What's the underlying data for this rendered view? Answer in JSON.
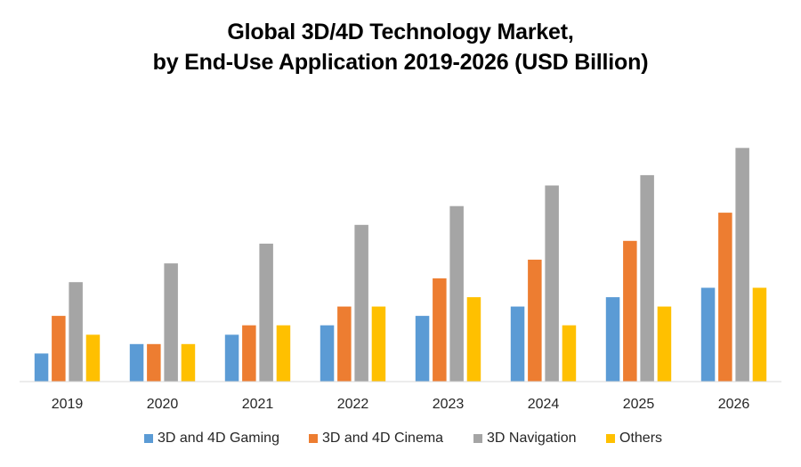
{
  "chart_data": {
    "type": "bar",
    "title": "Global 3D/4D Technology Market,",
    "subtitle": "by End-Use Application 2019-2026 (USD Billion)",
    "xlabel": "",
    "ylabel": "",
    "categories": [
      "2019",
      "2020",
      "2021",
      "2022",
      "2023",
      "2024",
      "2025",
      "2026"
    ],
    "series": [
      {
        "name": "3D and 4D Gaming",
        "color": "#5B9BD5",
        "values": [
          3.0,
          4.0,
          5.0,
          6.0,
          7.0,
          8.0,
          9.0,
          10.0
        ]
      },
      {
        "name": "3D and 4D Cinema",
        "color": "#ED7D31",
        "values": [
          7.0,
          4.0,
          6.0,
          8.0,
          11.0,
          13.0,
          15.0,
          18.0
        ]
      },
      {
        "name": "3D Navigation",
        "color": "#A5A5A5",
        "values": [
          10.6,
          12.6,
          14.7,
          16.7,
          18.7,
          20.9,
          22.0,
          24.9
        ]
      },
      {
        "name": "Others",
        "color": "#FFC000",
        "values": [
          5.0,
          4.0,
          6.0,
          8.0,
          9.0,
          6.0,
          8.0,
          10.0
        ]
      }
    ],
    "ylim": [
      0,
      25
    ],
    "value_note": "relative estimates; no y-axis shown",
    "grid": false,
    "legend_position": "bottom"
  }
}
